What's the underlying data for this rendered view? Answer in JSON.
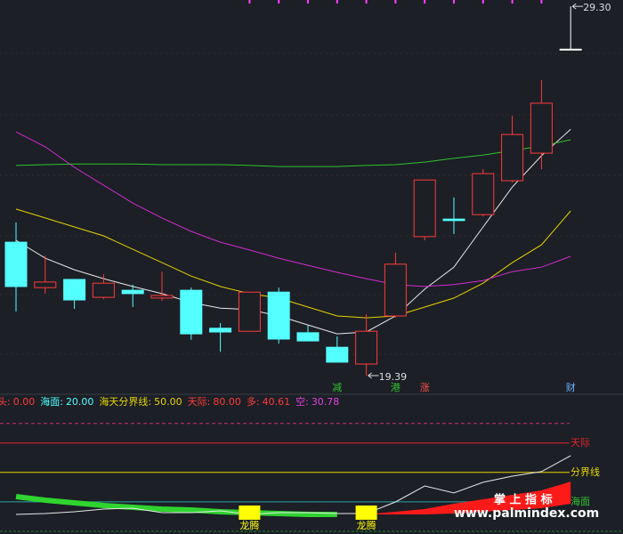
{
  "chart_data": [
    {
      "type": "candlestick",
      "ylim": [
        18.96,
        29.47
      ],
      "open": [
        22.97,
        21.75,
        21.97,
        21.49,
        21.68,
        21.47,
        21.68,
        20.66,
        20.58,
        21.63,
        20.54,
        20.15,
        19.7,
        20.99,
        23.12,
        23.59,
        23.71,
        24.62,
        25.36,
        28.15
      ],
      "high": [
        23.5,
        22.61,
        21.97,
        22.11,
        21.83,
        22.18,
        21.75,
        20.8,
        21.63,
        21.75,
        20.73,
        20.44,
        21.04,
        22.69,
        24.64,
        24.17,
        24.93,
        26.36,
        27.32,
        29.3
      ],
      "low": [
        21.11,
        21.59,
        21.18,
        21.44,
        21.23,
        21.4,
        20.35,
        20.03,
        20.58,
        20.25,
        20.32,
        19.75,
        19.39,
        20.94,
        23.02,
        23.19,
        23.66,
        24.57,
        24.93,
        28.15
      ],
      "close": [
        21.78,
        21.9,
        21.42,
        21.87,
        21.59,
        21.54,
        20.51,
        20.56,
        21.63,
        20.37,
        20.32,
        19.75,
        20.58,
        22.38,
        24.64,
        23.55,
        24.81,
        25.86,
        26.7,
        28.15
      ],
      "up_color": "#ff3b3b",
      "down_color": "#54ffff",
      "flat_color": "#ffffff",
      "ma_lines": [
        {
          "color": "#e8e8e8",
          "values": [
            23.02,
            22.54,
            22.23,
            21.99,
            21.78,
            21.59,
            21.35,
            21.2,
            21.16,
            20.99,
            20.75,
            20.51,
            20.56,
            20.99,
            21.71,
            22.3,
            23.38,
            24.45,
            25.29,
            26.0
          ]
        },
        {
          "color": "#e5d400",
          "values": [
            23.86,
            23.62,
            23.38,
            23.14,
            22.78,
            22.42,
            22.06,
            21.78,
            21.59,
            21.47,
            21.23,
            20.99,
            20.94,
            20.99,
            21.23,
            21.47,
            21.87,
            22.42,
            22.9,
            23.81
          ]
        },
        {
          "color": "#d22ad2",
          "values": [
            25.93,
            25.53,
            24.98,
            24.5,
            24.02,
            23.62,
            23.26,
            22.97,
            22.76,
            22.54,
            22.35,
            22.16,
            21.99,
            21.83,
            21.78,
            21.83,
            21.94,
            22.18,
            22.3,
            22.59
          ]
        },
        {
          "color": "#2fc42f",
          "values": [
            25.03,
            25.05,
            25.07,
            25.07,
            25.07,
            25.05,
            25.05,
            25.05,
            25.03,
            25.0,
            25.0,
            25.0,
            25.03,
            25.05,
            25.12,
            25.22,
            25.31,
            25.43,
            25.55,
            25.72
          ]
        }
      ],
      "peak_label": "29.30",
      "trough_label": "19.39",
      "signals": [
        {
          "index": 11,
          "label": "减",
          "color": "#2fc42f"
        },
        {
          "index": 13,
          "label": "港",
          "color": "#2fc42f"
        },
        {
          "index": 14,
          "label": "涨",
          "color": "#ff5050"
        },
        {
          "index": 19,
          "label": "财",
          "color": "#6ab0ff"
        }
      ]
    },
    {
      "type": "indicator",
      "ylim": [
        -11,
        127
      ],
      "legend": [
        {
          "name": "头:",
          "label": "0.00",
          "color": "#ff3b3b"
        },
        {
          "name": "海面:",
          "label": "20.00",
          "color": "#54ffff"
        },
        {
          "name": "海天分界线:",
          "label": "50.00",
          "color": "#e5d400"
        },
        {
          "name": "天际:",
          "label": "80.00",
          "color": "#ff3b3b"
        },
        {
          "name": "多:",
          "label": "40.61",
          "color": "#ff3b3b"
        },
        {
          "name": "空:",
          "label": "30.78",
          "color": "#e040e0"
        }
      ],
      "dash_level": {
        "value": 100,
        "color": "#d0306a"
      },
      "levels": [
        {
          "value": 80,
          "label": "天际",
          "color": "#e0262b",
          "label_color": "#e0262b"
        },
        {
          "value": 50,
          "label": "分界线",
          "color": "#e5d400",
          "label_color": "#e5d400"
        },
        {
          "value": 20,
          "label": "海面",
          "color": "#2aa8a0",
          "label_color": "#2fc42f"
        }
      ],
      "line": {
        "color": "#e8e8e8",
        "values": [
          7.2,
          8.1,
          9.9,
          12.6,
          13.5,
          9.0,
          9.0,
          10.8,
          7.2,
          9.0,
          9.0,
          8.1,
          8.1,
          19.9,
          36.2,
          29.0,
          39.9,
          46.2,
          50.8,
          67.1
        ]
      },
      "green_band": {
        "color": "#2fd42f",
        "values": [
          25.3,
          21.7,
          19.0,
          16.2,
          14.4,
          12.6,
          11.7,
          9.9,
          9.0,
          8.1,
          7.2,
          7.2,
          null,
          null,
          null,
          null,
          null,
          null,
          null,
          null
        ]
      },
      "red_area": {
        "color": "#ff1a1a",
        "upper": [
          null,
          null,
          null,
          null,
          null,
          null,
          null,
          null,
          null,
          null,
          null,
          null,
          7.2,
          9.9,
          12.6,
          18.1,
          22.6,
          27.1,
          31.7,
          40.61
        ],
        "lower": [
          null,
          null,
          null,
          null,
          null,
          null,
          null,
          null,
          null,
          null,
          null,
          null,
          7.2,
          7.2,
          7.2,
          8.1,
          9.9,
          11.7,
          13.5,
          18.1
        ]
      },
      "signals": [
        {
          "index": 8,
          "label": "龙腾",
          "color": "#ffff00"
        },
        {
          "index": 12,
          "label": "龙腾",
          "color": "#ffff00"
        }
      ],
      "watermark": {
        "title": "掌 上 指 标",
        "url": "www.palmindex.com"
      }
    }
  ]
}
